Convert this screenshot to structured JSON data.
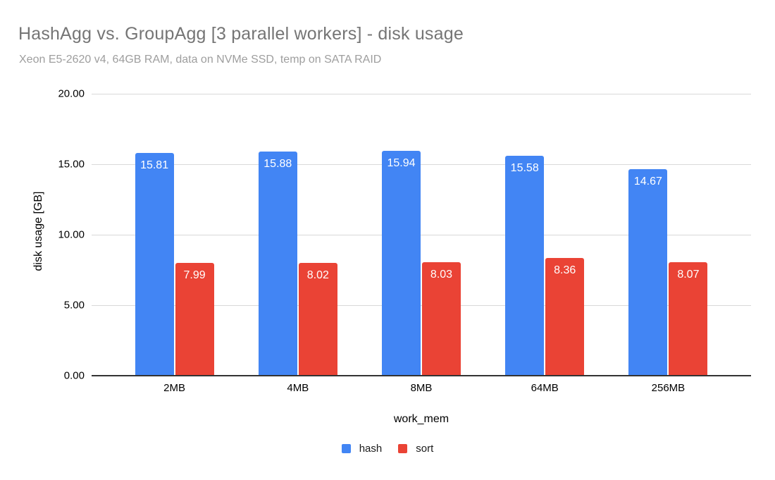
{
  "chart_data": {
    "type": "bar",
    "title": "HashAgg vs. GroupAgg [3 parallel workers] - disk usage",
    "subtitle": "Xeon E5-2620 v4, 64GB RAM, data on NVMe SSD, temp on SATA RAID",
    "xlabel": "work_mem",
    "ylabel": "disk usage [GB]",
    "categories": [
      "2MB",
      "4MB",
      "8MB",
      "64MB",
      "256MB"
    ],
    "series": [
      {
        "name": "hash",
        "color": "#4285F4",
        "values": [
          15.81,
          15.88,
          15.94,
          15.58,
          14.67
        ]
      },
      {
        "name": "sort",
        "color": "#EA4335",
        "values": [
          7.99,
          8.02,
          8.03,
          8.36,
          8.07
        ]
      }
    ],
    "ylim": [
      0,
      20
    ],
    "yticks": [
      "0.00",
      "5.00",
      "10.00",
      "15.00",
      "20.00"
    ],
    "grid": true,
    "legend_position": "bottom",
    "value_labels": "inside-top-white",
    "colors": {
      "title": "#757575",
      "subtitle": "#9e9e9e",
      "gridline": "#d9d9d9",
      "axis_baseline": "#333333",
      "axis_text": "#000000",
      "background": "#ffffff"
    }
  }
}
